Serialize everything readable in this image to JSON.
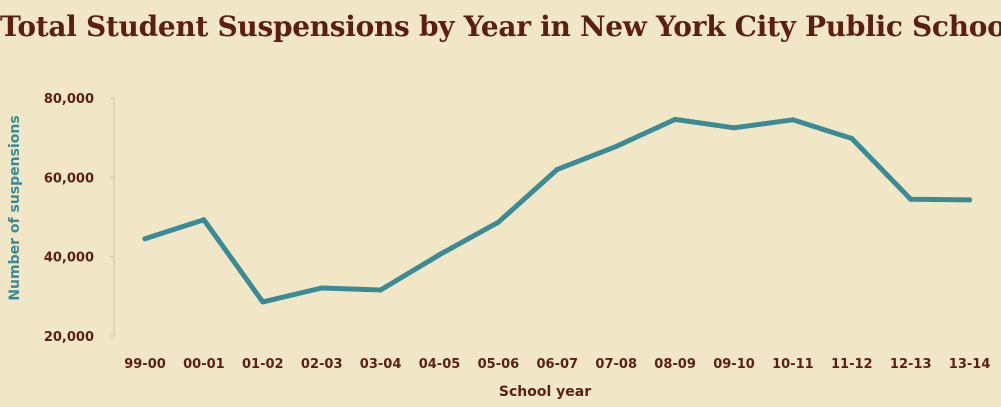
{
  "chart_data": {
    "type": "line",
    "title": "Total Student Suspensions by Year in New York City Public Schools",
    "xlabel": "School year",
    "ylabel": "Number of suspensions",
    "categories": [
      "99-00",
      "00-01",
      "01-02",
      "02-03",
      "03-04",
      "04-05",
      "05-06",
      "06-07",
      "07-08",
      "08-09",
      "09-10",
      "10-11",
      "11-12",
      "12-13",
      "13-14"
    ],
    "series": [
      {
        "values": [
          44500,
          49300,
          28600,
          32100,
          31600,
          40500,
          48700,
          62000,
          67800,
          74600,
          72500,
          74500,
          69800,
          54500,
          54300
        ],
        "color": "#3a8b96"
      }
    ],
    "ylim": [
      20000,
      80000
    ],
    "yticks": [
      20000,
      40000,
      60000,
      80000
    ],
    "ytick_labels": [
      "20,000",
      "40,000",
      "60,000",
      "80,000"
    ],
    "grid": false,
    "legend": "none"
  },
  "colors": {
    "background": "#f1e7c6",
    "text": "#5b1f12",
    "line": "#3a8b96",
    "axis": "#c9c2ac"
  }
}
